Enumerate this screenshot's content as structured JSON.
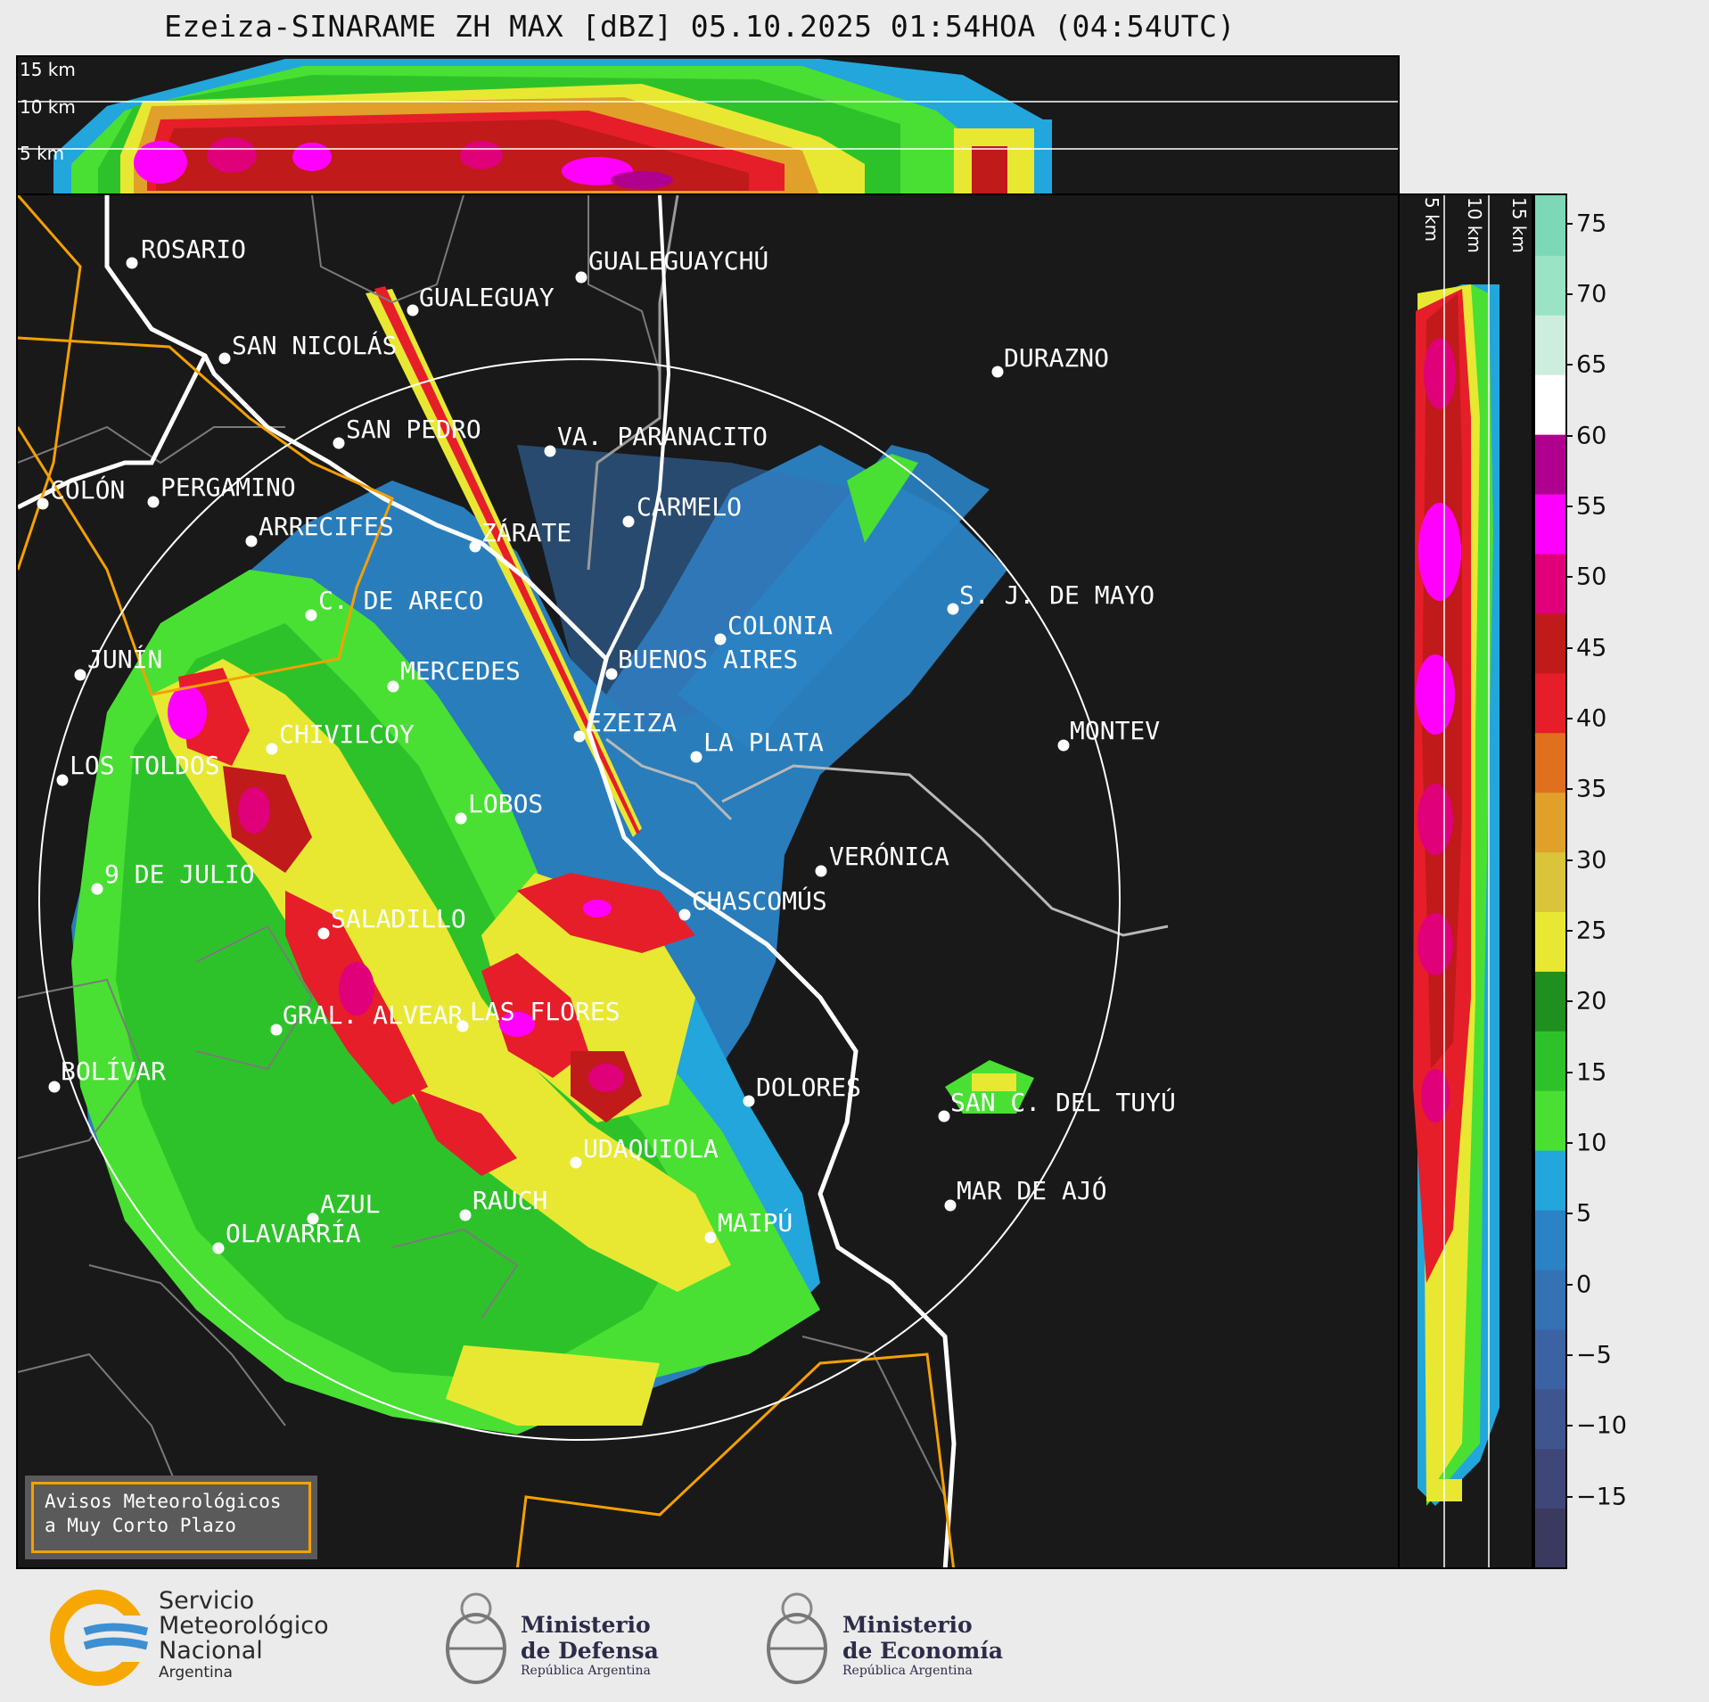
{
  "title": "Ezeiza-SINARAME ZH MAX [dBZ] 05.10.2025 01:54HOA (04:54UTC)",
  "altitude_labels": [
    "15 km",
    "10 km",
    "5 km"
  ],
  "altitude_labels_vertical": [
    "5 km",
    "10 km",
    "15 km"
  ],
  "colorbar": {
    "unit": "dBZ",
    "ticks": [
      "75",
      "70",
      "65",
      "60",
      "55",
      "50",
      "45",
      "40",
      "35",
      "30",
      "25",
      "20",
      "15",
      "10",
      "5",
      "0",
      "−5",
      "−10",
      "−15"
    ],
    "range": [
      -20,
      77
    ],
    "colors": [
      "#3a3a5e",
      "#3e4778",
      "#3f5590",
      "#3b63a3",
      "#3472b4",
      "#2a83c4",
      "#22a6db",
      "#49e033",
      "#2ec22a",
      "#1f8f1f",
      "#e8e833",
      "#d9c43a",
      "#e0a02a",
      "#e06f1e",
      "#e51e2a",
      "#c01a1a",
      "#e0007a",
      "#ff00ff",
      "#b0008f",
      "#ffffff",
      "#cdeedf",
      "#9ae3c4",
      "#7dd8b8"
    ]
  },
  "cities": [
    {
      "name": "ROSARIO"
    },
    {
      "name": "GUALEGUAYCHÚ"
    },
    {
      "name": "GUALEGUAY"
    },
    {
      "name": "SAN NICOLÁS"
    },
    {
      "name": "DURAZNO"
    },
    {
      "name": "SAN PEDRO"
    },
    {
      "name": "VA. PARANACITO"
    },
    {
      "name": "COLÓN"
    },
    {
      "name": "PERGAMINO"
    },
    {
      "name": "CARMELO"
    },
    {
      "name": "ARRECIFES"
    },
    {
      "name": "ZÁRATE"
    },
    {
      "name": "S. J. DE MAYO"
    },
    {
      "name": "C. DE ARECO"
    },
    {
      "name": "COLONIA"
    },
    {
      "name": "JUNÍN"
    },
    {
      "name": "BUENOS AIRES"
    },
    {
      "name": "MERCEDES"
    },
    {
      "name": "MONTEV"
    },
    {
      "name": "EZEIZA"
    },
    {
      "name": "CHIVILCOY"
    },
    {
      "name": "LA PLATA"
    },
    {
      "name": "LOS TOLDOS"
    },
    {
      "name": "LOBOS"
    },
    {
      "name": "VERÓNICA"
    },
    {
      "name": "9 DE JULIO"
    },
    {
      "name": "CHASCOMÚS"
    },
    {
      "name": "SALADILLO"
    },
    {
      "name": "GRAL. ALVEAR"
    },
    {
      "name": "LAS FLORES"
    },
    {
      "name": "BOLÍVAR"
    },
    {
      "name": "DOLORES"
    },
    {
      "name": "SAN C. DEL TUYÚ"
    },
    {
      "name": "UDAQUIOLA"
    },
    {
      "name": "AZUL"
    },
    {
      "name": "RAUCH"
    },
    {
      "name": "MAR DE AJÓ"
    },
    {
      "name": "OLAVARRÍA"
    },
    {
      "name": "MAIPÚ"
    }
  ],
  "avisos": {
    "line1": "Avisos Meteorológicos",
    "line2": "a Muy Corto Plazo"
  },
  "footer": {
    "smn": {
      "l1": "Servicio",
      "l2": "Meteorológico",
      "l3": "Nacional",
      "l4": "Argentina"
    },
    "defensa": {
      "l1": "Ministerio",
      "l2": "de Defensa",
      "l3": "República Argentina"
    },
    "economia": {
      "l1": "Ministerio",
      "l2": "de Economía",
      "l3": "República Argentina"
    }
  }
}
